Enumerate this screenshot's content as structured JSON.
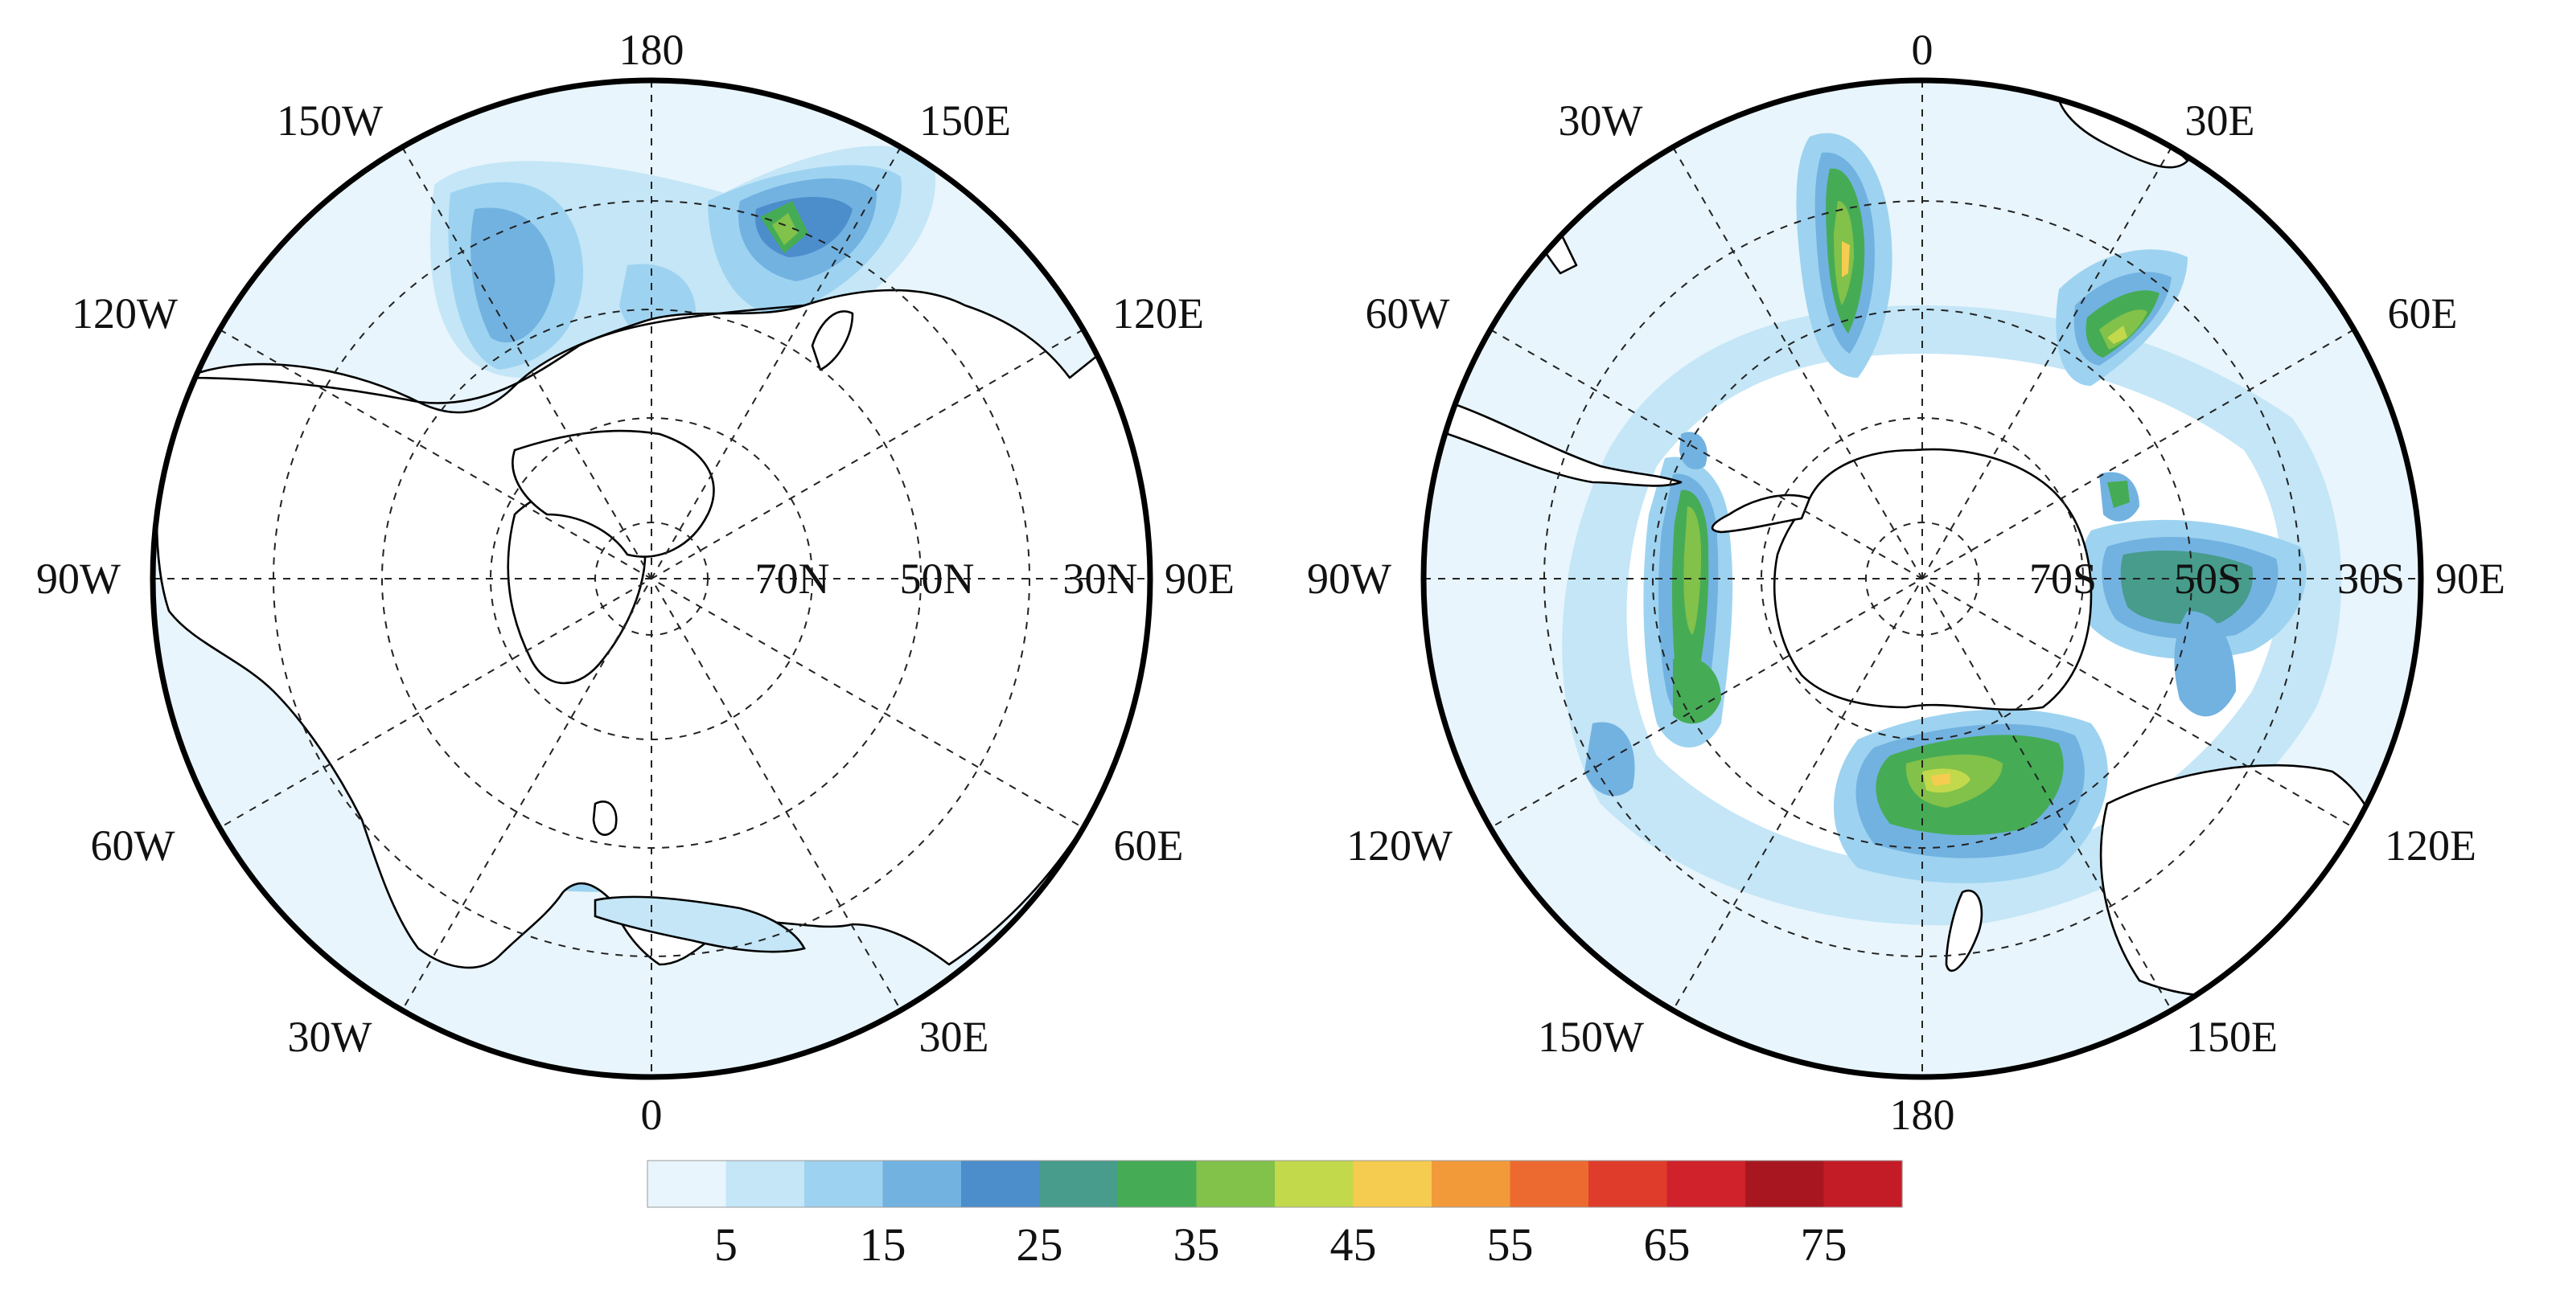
{
  "nh_map": {
    "lon_labels": {
      "top": "180",
      "bottom": "0",
      "left": "90W",
      "right": "90E",
      "upper_left_1": "150W",
      "upper_left_2": "120W",
      "upper_right_1": "150E",
      "upper_right_2": "120E",
      "lower_left_1": "60W",
      "lower_left_2": "30W",
      "lower_right_1": "60E",
      "lower_right_2": "30E"
    },
    "lat_labels": [
      "70N",
      "50N",
      "30N"
    ]
  },
  "sh_map": {
    "lon_labels": {
      "top": "0",
      "bottom": "180",
      "left": "90W",
      "right": "90E",
      "upper_left_1": "30W",
      "upper_left_2": "60W",
      "upper_right_1": "30E",
      "upper_right_2": "60E",
      "lower_left_1": "120W",
      "lower_left_2": "150W",
      "lower_right_1": "120E",
      "lower_right_2": "150E"
    },
    "lat_labels": [
      "70S",
      "50S",
      "30S"
    ]
  },
  "colorbar": {
    "tick_labels": [
      "5",
      "15",
      "25",
      "35",
      "45",
      "55",
      "65",
      "75"
    ],
    "colors": [
      "#e8f5fc",
      "#c4e6f7",
      "#9dd3f0",
      "#72b2e1",
      "#4c8dcb",
      "#479c8b",
      "#45ac55",
      "#82c14a",
      "#c2d94c",
      "#f5cc4f",
      "#f29a3a",
      "#ec6a2f",
      "#df3c2b",
      "#d0222b",
      "#a8171f",
      "#c41c27"
    ]
  }
}
